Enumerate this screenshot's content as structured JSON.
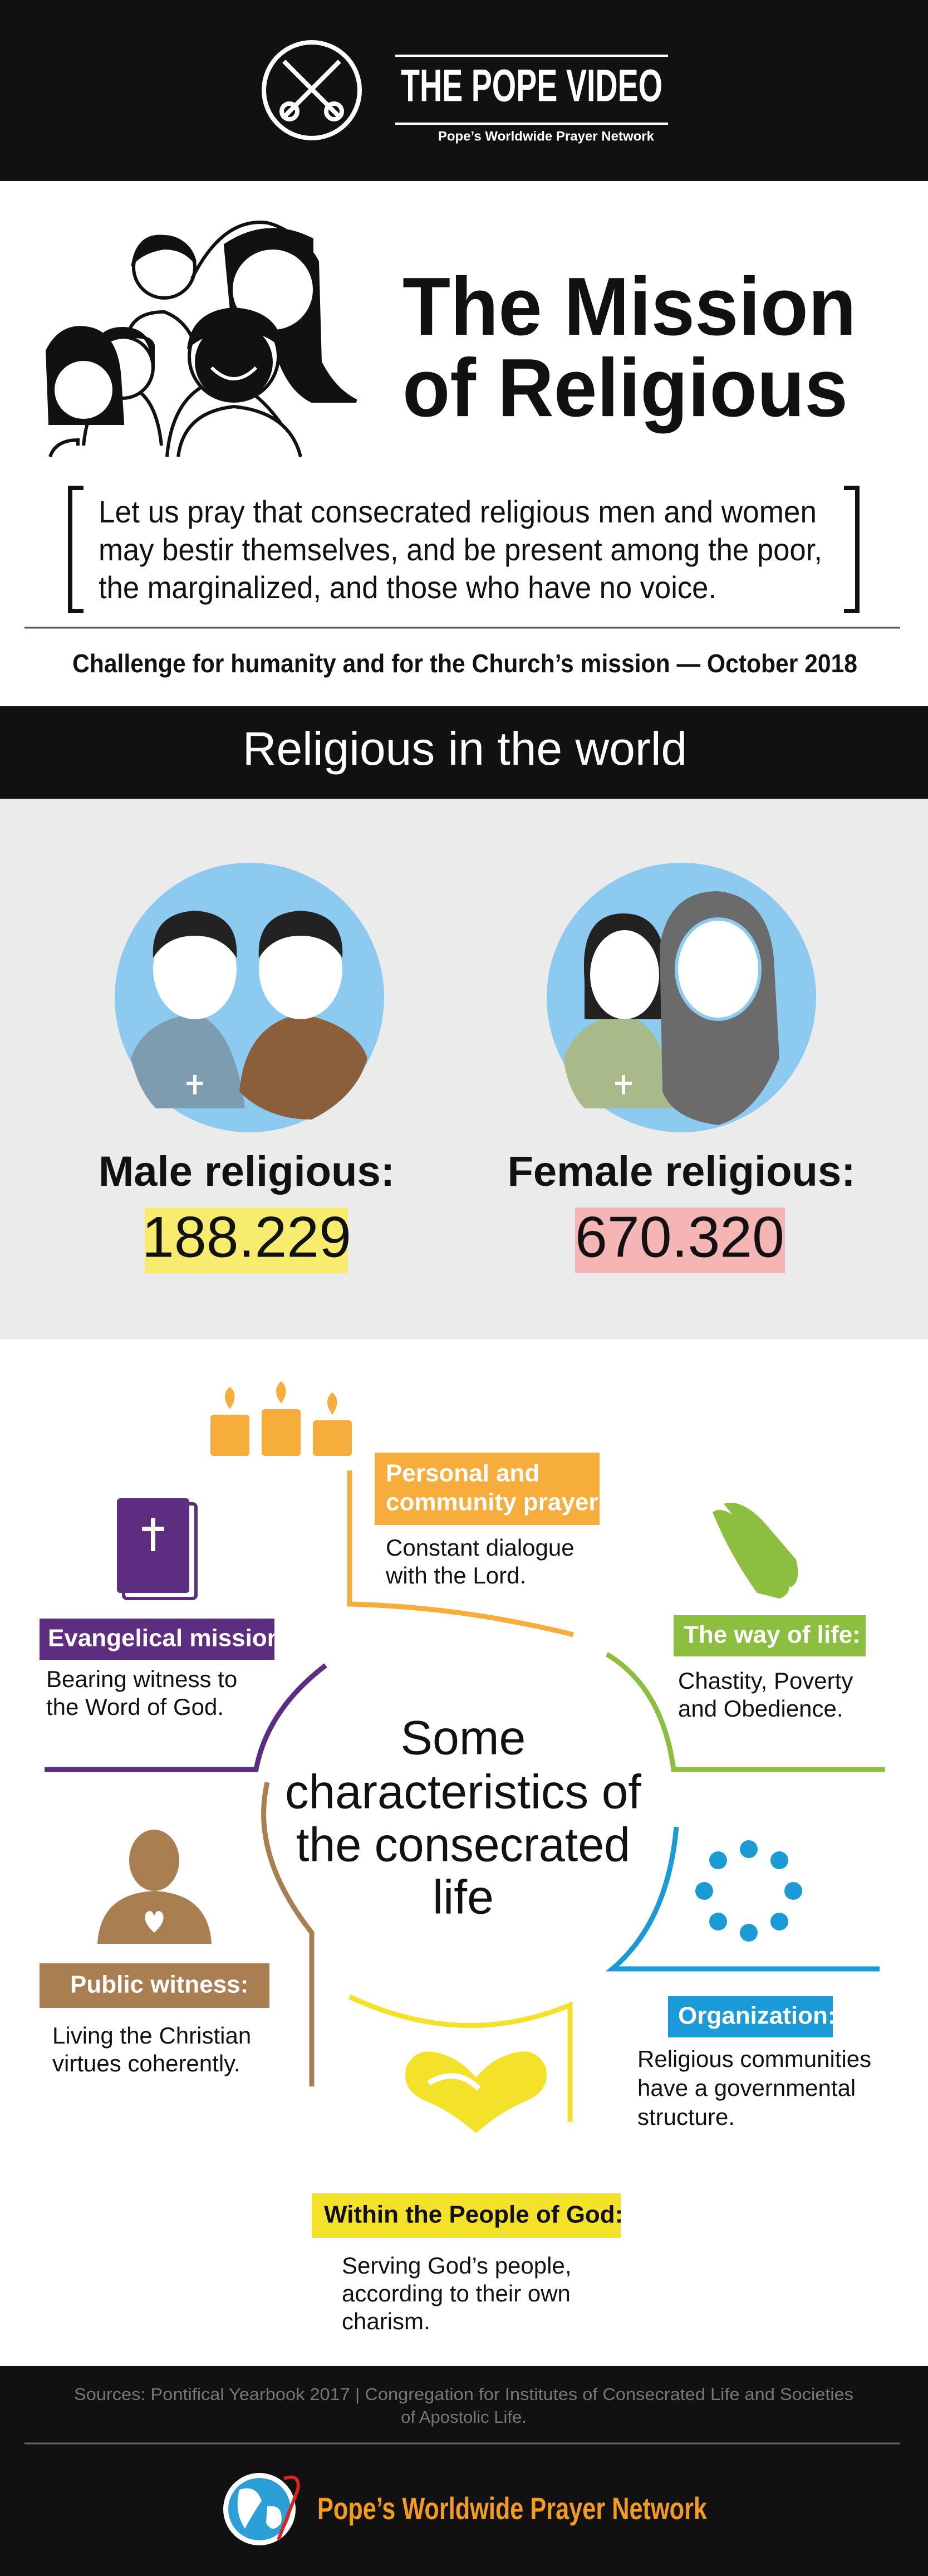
{
  "header": {
    "title": "THE POPE VIDEO",
    "subtitle": "Pope’s Worldwide Prayer Network"
  },
  "intro": {
    "title_lines": [
      "The Mission",
      "of Religious"
    ],
    "prayer_lines": [
      "Let us pray that consecrated religious men and women",
      "may bestir themselves, and be present among the poor,",
      "the marginalized, and those who have no voice."
    ],
    "challenge": "Challenge for humanity and for the Church’s mission — October 2018"
  },
  "stats": {
    "heading": "Religious in the world",
    "items": [
      {
        "label": "Male religious:",
        "value": "188.229"
      },
      {
        "label": "Female religious:",
        "value": "670.320"
      }
    ]
  },
  "characteristics": {
    "center_lines": [
      "Some",
      "characteristics of",
      "the consecrated",
      "life"
    ],
    "items": [
      {
        "title_lines": [
          "Personal and",
          "community prayer:"
        ],
        "text_lines": [
          "Constant dialogue",
          "with the Lord."
        ]
      },
      {
        "title_lines": [
          "The way of life:"
        ],
        "text_lines": [
          "Chastity, Poverty",
          "and Obedience."
        ]
      },
      {
        "title_lines": [
          "Organization:"
        ],
        "text_lines": [
          "Religious communities",
          "have a governmental",
          "structure."
        ]
      },
      {
        "title_lines": [
          "Within the People of God:"
        ],
        "text_lines": [
          "Serving God’s people,",
          "according to their own",
          "charism."
        ]
      },
      {
        "title_lines": [
          "Public witness:"
        ],
        "text_lines": [
          "Living the Christian",
          "virtues coherently."
        ]
      },
      {
        "title_lines": [
          "Evangelical mission:"
        ],
        "text_lines": [
          "Bearing witness to",
          "the Word of God."
        ]
      }
    ]
  },
  "footer": {
    "sources_lines": [
      "Sources: Pontifical Yearbook 2017 | Congregation for Institutes of Consecrated Life and Societies",
      "of Apostolic Life."
    ],
    "network": "Pope’s Worldwide Prayer Network"
  }
}
